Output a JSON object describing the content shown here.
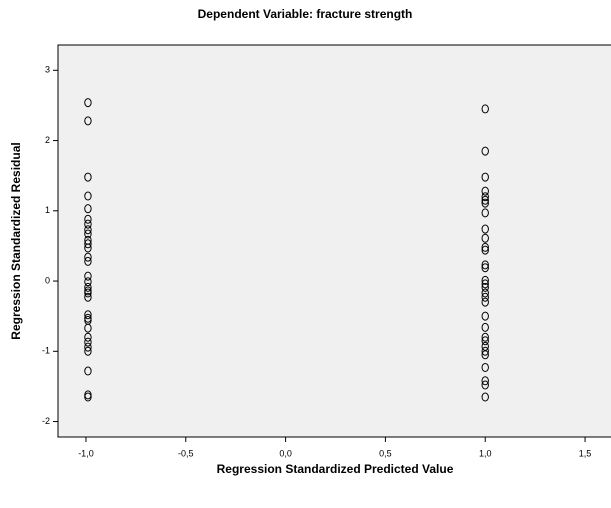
{
  "chart_data": {
    "type": "scatter",
    "title": "Dependent Variable: fracture strength",
    "xlabel": "Regression Standardized Predicted Value",
    "ylabel": "Regression Standardized Residual",
    "x": [
      -0.99,
      -0.99,
      -0.99,
      -0.99,
      -0.99,
      -0.99,
      -0.99,
      -0.99,
      -0.99,
      -0.99,
      -0.99,
      -0.99,
      -0.99,
      -0.99,
      -0.99,
      -0.99,
      -0.99,
      -0.99,
      -0.99,
      -0.99,
      -0.99,
      -0.99,
      -0.99,
      -0.99,
      -0.99,
      -0.99,
      -0.99,
      -0.99,
      -0.99,
      -0.99,
      -0.99,
      1.0,
      1.0,
      1.0,
      1.0,
      1.0,
      1.0,
      1.0,
      1.0,
      1.0,
      1.0,
      1.0,
      1.0,
      1.0,
      1.0,
      1.0,
      1.0,
      1.0,
      1.0,
      1.0,
      1.0,
      1.0,
      1.0,
      1.0,
      1.0,
      1.0,
      1.0,
      1.0,
      1.0,
      1.0,
      1.0,
      1.0
    ],
    "values": [
      2.54,
      2.28,
      1.48,
      1.21,
      1.03,
      0.88,
      0.81,
      0.73,
      0.67,
      0.58,
      0.53,
      0.47,
      0.34,
      0.28,
      0.07,
      -0.01,
      -0.09,
      -0.14,
      -0.17,
      -0.23,
      -0.48,
      -0.53,
      -0.56,
      -0.67,
      -0.8,
      -0.87,
      -0.94,
      -1.0,
      -1.28,
      -1.62,
      -1.65,
      2.45,
      1.85,
      1.48,
      1.28,
      1.2,
      1.15,
      1.11,
      0.97,
      0.74,
      0.61,
      0.48,
      0.44,
      0.23,
      0.19,
      0.01,
      -0.04,
      -0.09,
      -0.17,
      -0.23,
      -0.3,
      -0.5,
      -0.66,
      -0.8,
      -0.85,
      -0.93,
      -1.0,
      -1.05,
      -1.23,
      -1.42,
      -1.48,
      -1.65
    ],
    "color": "#000000",
    "xlim": [
      -1.14,
      1.63
    ],
    "xticks": [
      {
        "value": -1.0,
        "label": "-1,0"
      },
      {
        "value": -0.5,
        "label": "-0,5"
      },
      {
        "value": 0.0,
        "label": "0,0"
      },
      {
        "value": 0.5,
        "label": "0,5"
      },
      {
        "value": 1.0,
        "label": "1,0"
      },
      {
        "value": 1.5,
        "label": "1,5"
      }
    ],
    "ylim": [
      -2.22,
      3.36
    ],
    "yticks": [
      -2,
      -1,
      0,
      1,
      2,
      3
    ]
  }
}
